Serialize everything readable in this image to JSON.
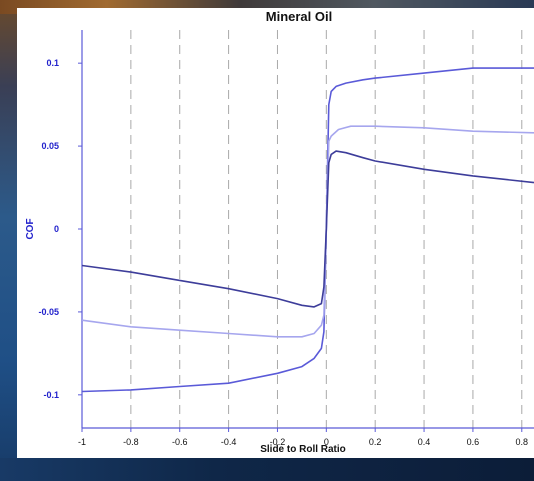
{
  "chart_data": {
    "type": "line",
    "title": "Mineral Oil",
    "xlabel": "Slide to Roll Ratio",
    "ylabel": "COF",
    "xlim": [
      -1,
      0.85
    ],
    "ylim": [
      -0.12,
      0.12
    ],
    "x_ticks": [
      "-1",
      "-0.8",
      "-0.6",
      "-0.4",
      "-0.2",
      "0",
      "0.2",
      "0.4",
      "0.6",
      "0.8"
    ],
    "y_ticks": [
      "0.1",
      "0.05",
      "0",
      "-0.05",
      "-0.1"
    ],
    "grid": "vertical dashed",
    "series": [
      {
        "color": "#5a5ad8",
        "x": [
          -1,
          -0.8,
          -0.6,
          -0.4,
          -0.2,
          -0.1,
          -0.05,
          -0.02,
          -0.01,
          0,
          0.01,
          0.02,
          0.04,
          0.08,
          0.15,
          0.2,
          0.4,
          0.6,
          0.85
        ],
        "y": [
          -0.098,
          -0.097,
          -0.095,
          -0.093,
          -0.087,
          -0.083,
          -0.078,
          -0.072,
          -0.062,
          0,
          0.075,
          0.083,
          0.086,
          0.088,
          0.09,
          0.091,
          0.094,
          0.097,
          0.097
        ]
      },
      {
        "color": "#a6a6ee",
        "x": [
          -1,
          -0.8,
          -0.6,
          -0.4,
          -0.2,
          -0.1,
          -0.05,
          -0.02,
          -0.01,
          0,
          0.01,
          0.02,
          0.05,
          0.1,
          0.2,
          0.4,
          0.6,
          0.85
        ],
        "y": [
          -0.055,
          -0.059,
          -0.061,
          -0.063,
          -0.065,
          -0.065,
          -0.063,
          -0.058,
          -0.052,
          0,
          0.053,
          0.056,
          0.06,
          0.062,
          0.062,
          0.061,
          0.059,
          0.058
        ]
      },
      {
        "color": "#3d3d9a",
        "x": [
          -1,
          -0.8,
          -0.6,
          -0.4,
          -0.2,
          -0.1,
          -0.05,
          -0.02,
          -0.01,
          0,
          0.01,
          0.02,
          0.04,
          0.08,
          0.15,
          0.2,
          0.4,
          0.6,
          0.85
        ],
        "y": [
          -0.022,
          -0.026,
          -0.031,
          -0.036,
          -0.042,
          -0.046,
          -0.047,
          -0.045,
          -0.035,
          0,
          0.04,
          0.045,
          0.047,
          0.046,
          0.043,
          0.041,
          0.036,
          0.032,
          0.028
        ]
      }
    ]
  }
}
